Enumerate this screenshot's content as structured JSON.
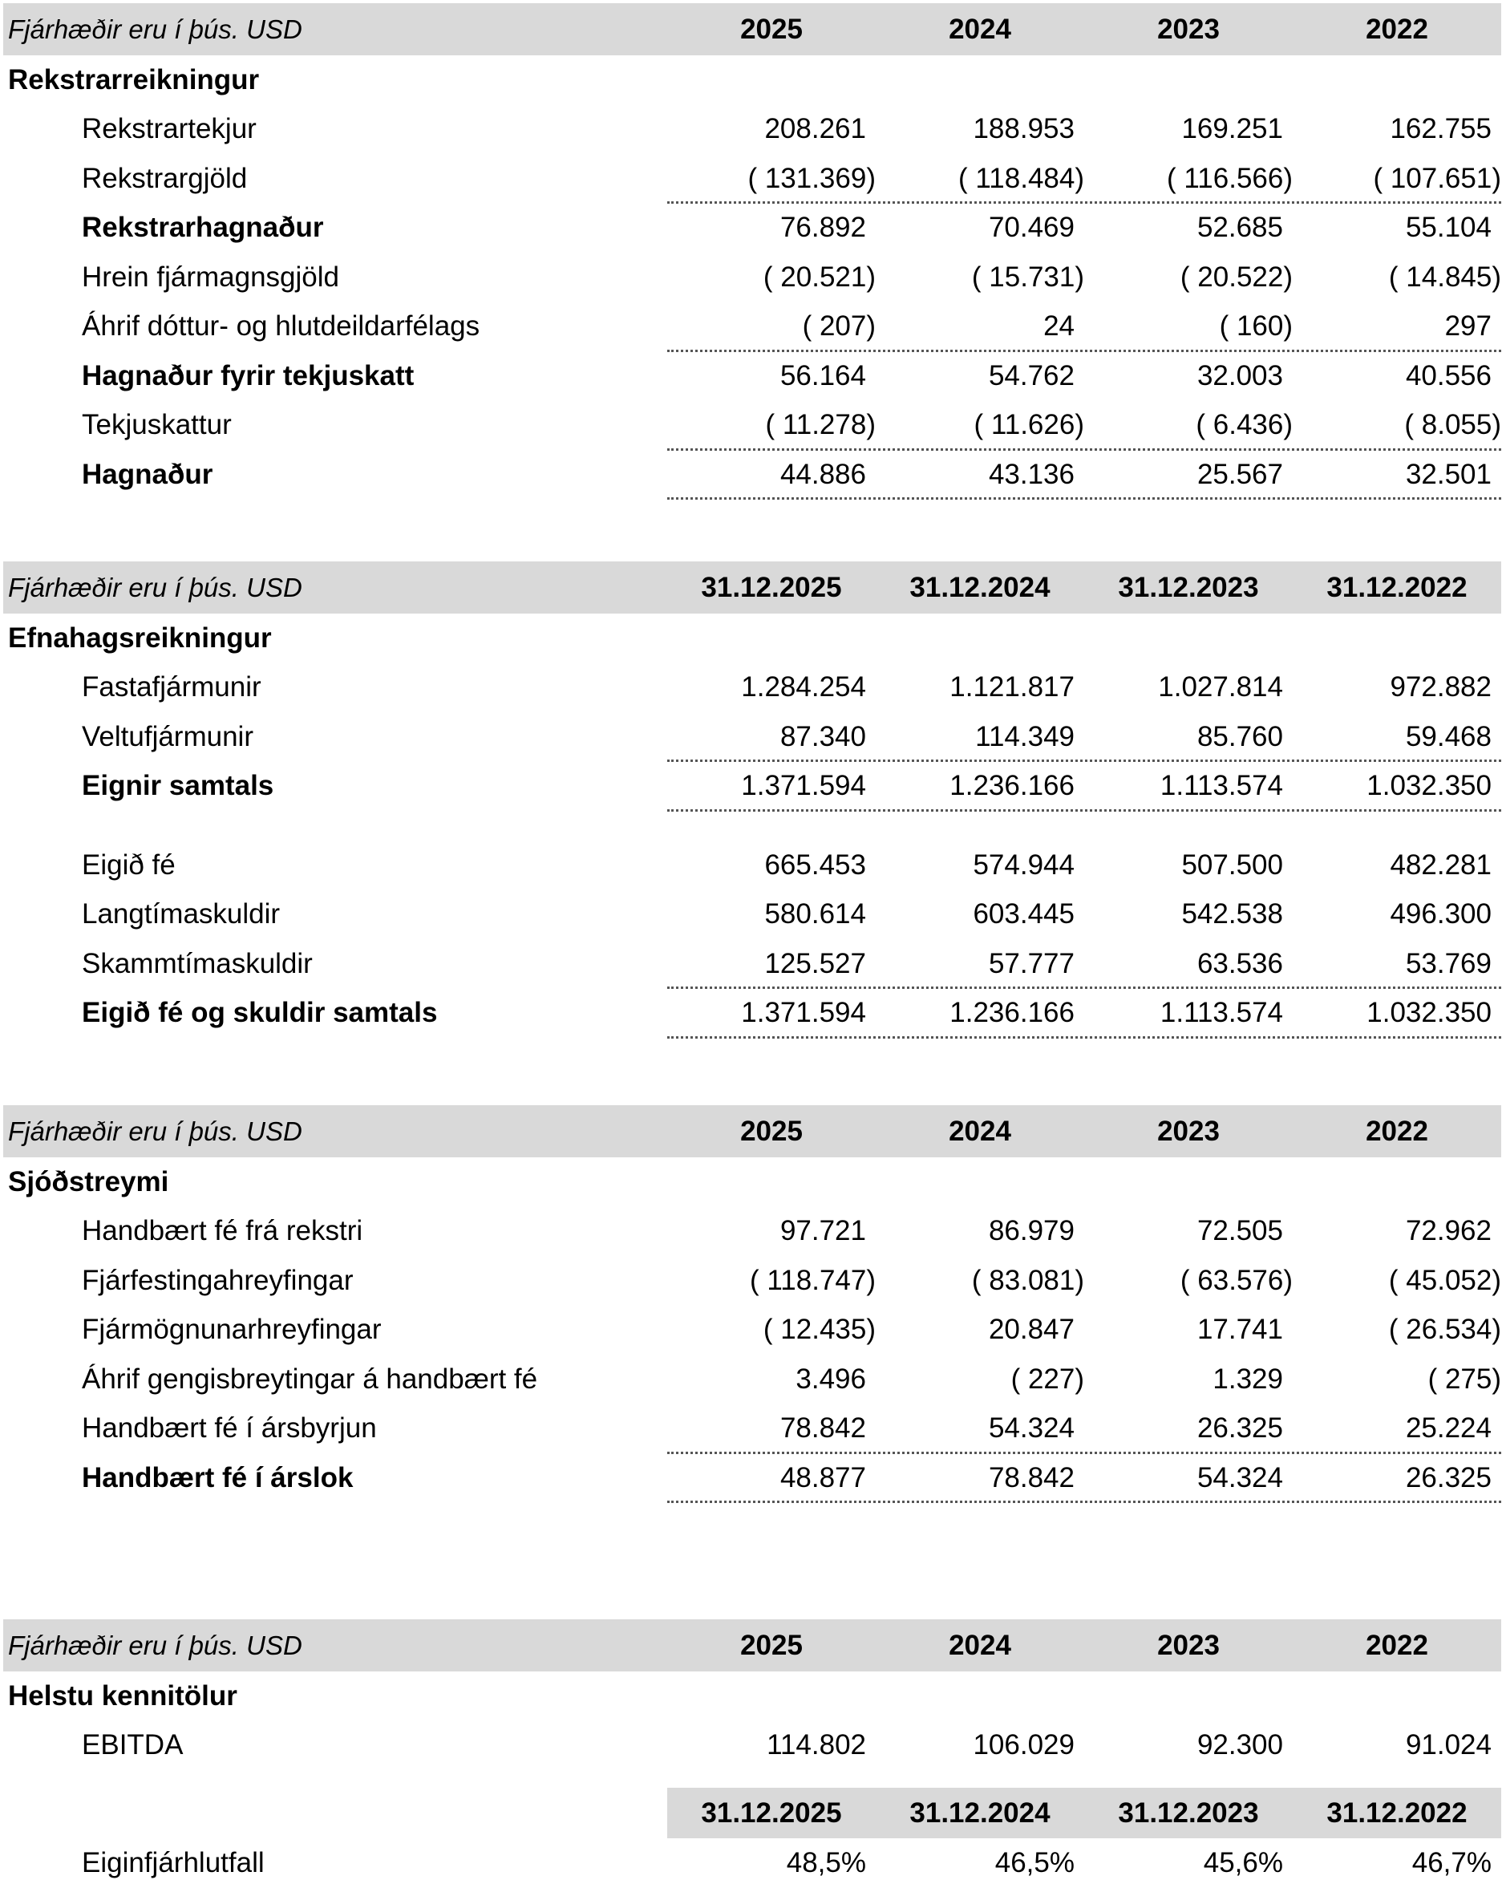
{
  "sections": [
    {
      "unit": "Fjárhæðir eru í þús. USD",
      "columns": [
        "2025",
        "2024",
        "2023",
        "2022"
      ],
      "title": "Rekstrarreikningur",
      "rows": [
        {
          "label": "Rekstrartekjur",
          "values": [
            "208.261",
            "188.953",
            "169.251",
            "162.755"
          ]
        },
        {
          "label": "Rekstrargjöld",
          "values": [
            "( 131.369)",
            "( 118.484)",
            "( 116.566)",
            "( 107.651)"
          ],
          "line_below": true
        },
        {
          "label": "Rekstrarhagnaður",
          "bold": true,
          "values": [
            "76.892",
            "70.469",
            "52.685",
            "55.104"
          ]
        },
        {
          "label": "Hrein fjármagnsgjöld",
          "values": [
            "( 20.521)",
            "( 15.731)",
            "( 20.522)",
            "( 14.845)"
          ]
        },
        {
          "label": "Áhrif dóttur- og hlutdeildarfélags",
          "values": [
            "( 207)",
            "24",
            "( 160)",
            "297"
          ],
          "line_below": true
        },
        {
          "label": "Hagnaður fyrir tekjuskatt",
          "bold": true,
          "values": [
            "56.164",
            "54.762",
            "32.003",
            "40.556"
          ]
        },
        {
          "label": "Tekjuskattur",
          "values": [
            "( 11.278)",
            "( 11.626)",
            "( 6.436)",
            "( 8.055)"
          ],
          "line_below": true
        },
        {
          "label": "Hagnaður",
          "bold": true,
          "values": [
            "44.886",
            "43.136",
            "25.567",
            "32.501"
          ],
          "line_below": true
        }
      ]
    },
    {
      "unit": "Fjárhæðir eru í þús. USD",
      "columns": [
        "31.12.2025",
        "31.12.2024",
        "31.12.2023",
        "31.12.2022"
      ],
      "title": "Efnahagsreikningur",
      "rows": [
        {
          "label": "Fastafjármunir",
          "values": [
            "1.284.254",
            "1.121.817",
            "1.027.814",
            "972.882"
          ]
        },
        {
          "label": "Veltufjármunir",
          "values": [
            "87.340",
            "114.349",
            "85.760",
            "59.468"
          ],
          "line_below": true
        },
        {
          "label": "Eignir samtals",
          "bold": true,
          "values": [
            "1.371.594",
            "1.236.166",
            "1.113.574",
            "1.032.350"
          ],
          "line_below": true,
          "gap_after": true
        },
        {
          "label": "Eigið fé",
          "values": [
            "665.453",
            "574.944",
            "507.500",
            "482.281"
          ]
        },
        {
          "label": "Langtímaskuldir",
          "values": [
            "580.614",
            "603.445",
            "542.538",
            "496.300"
          ]
        },
        {
          "label": "Skammtímaskuldir",
          "values": [
            "125.527",
            "57.777",
            "63.536",
            "53.769"
          ],
          "line_below": true
        },
        {
          "label": "Eigið fé og skuldir samtals",
          "bold": true,
          "values": [
            "1.371.594",
            "1.236.166",
            "1.113.574",
            "1.032.350"
          ],
          "line_below": true
        }
      ]
    },
    {
      "unit": "Fjárhæðir eru í þús. USD",
      "columns": [
        "2025",
        "2024",
        "2023",
        "2022"
      ],
      "title": "Sjóðstreymi",
      "rows": [
        {
          "label": "Handbært fé frá rekstri",
          "values": [
            "97.721",
            "86.979",
            "72.505",
            "72.962"
          ]
        },
        {
          "label": "Fjárfestingahreyfingar",
          "values": [
            "( 118.747)",
            "( 83.081)",
            "( 63.576)",
            "( 45.052)"
          ]
        },
        {
          "label": "Fjármögnunarhreyfingar",
          "values": [
            "( 12.435)",
            "20.847",
            "17.741",
            "( 26.534)"
          ]
        },
        {
          "label": "Áhrif gengisbreytingar á handbært fé",
          "values": [
            "3.496",
            "( 227)",
            "1.329",
            "( 275)"
          ]
        },
        {
          "label": "Handbært fé í ársbyrjun",
          "values": [
            "78.842",
            "54.324",
            "26.325",
            "25.224"
          ],
          "line_below": true
        },
        {
          "label": "Handbært fé í árslok",
          "bold": true,
          "values": [
            "48.877",
            "78.842",
            "54.324",
            "26.325"
          ],
          "line_below": true
        }
      ]
    },
    {
      "unit": "Fjárhæðir eru í þús. USD",
      "columns": [
        "2025",
        "2024",
        "2023",
        "2022"
      ],
      "title": "Helstu kennitölur",
      "rows": [
        {
          "label": "EBITDA",
          "values": [
            "114.802",
            "106.029",
            "92.300",
            "91.024"
          ]
        }
      ],
      "sub_columns": [
        "31.12.2025",
        "31.12.2024",
        "31.12.2023",
        "31.12.2022"
      ],
      "sub_rows": [
        {
          "label": "Eiginfjárhlutfall",
          "values": [
            "48,5%",
            "46,5%",
            "45,6%",
            "46,7%"
          ]
        }
      ]
    }
  ]
}
